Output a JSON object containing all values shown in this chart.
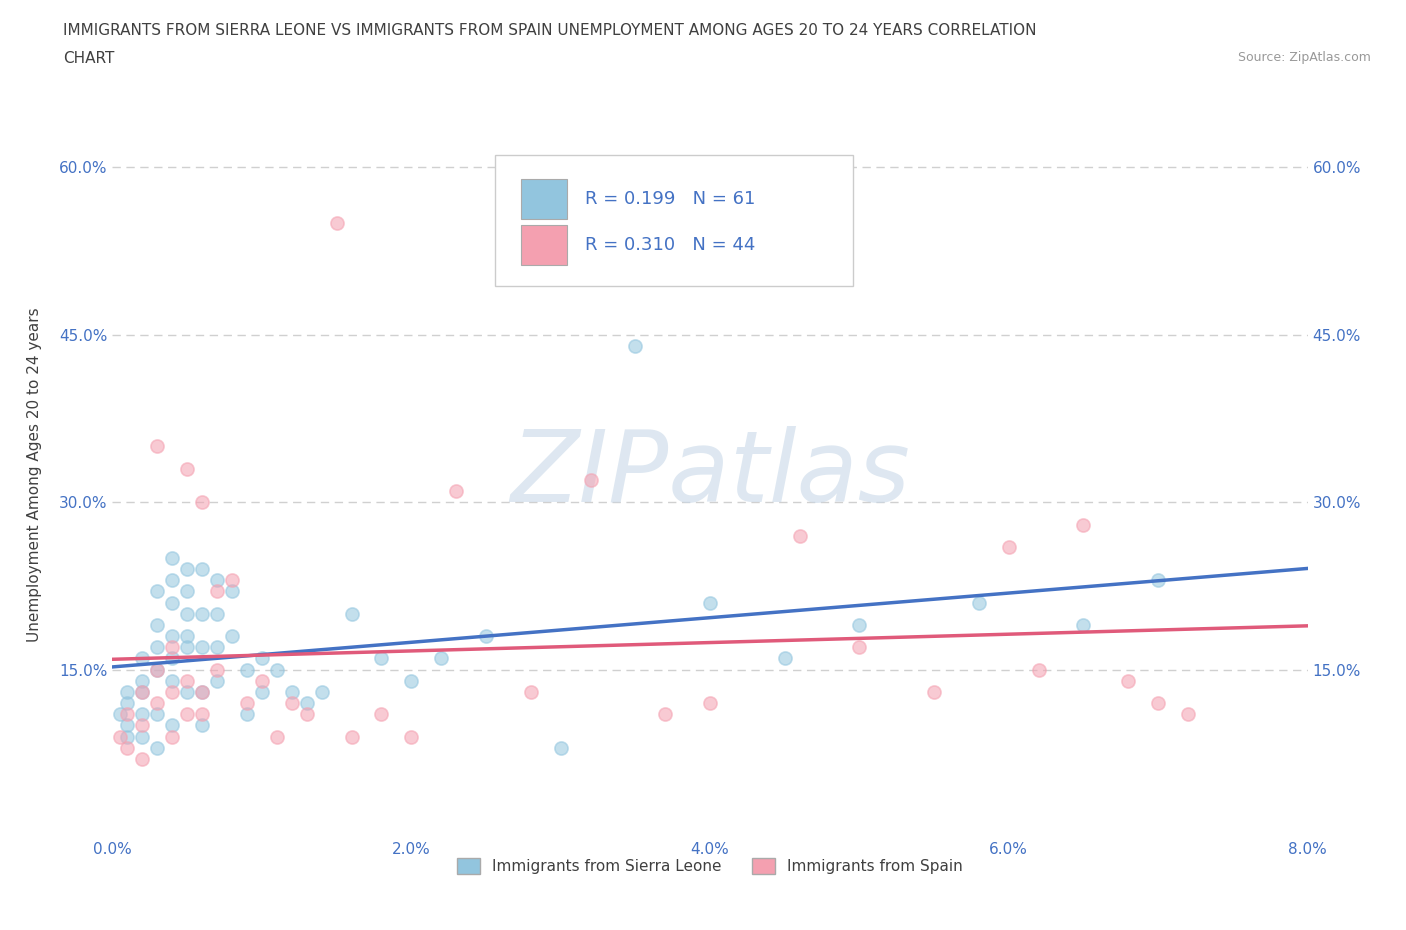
{
  "title_line1": "IMMIGRANTS FROM SIERRA LEONE VS IMMIGRANTS FROM SPAIN UNEMPLOYMENT AMONG AGES 20 TO 24 YEARS CORRELATION",
  "title_line2": "CHART",
  "source_text": "Source: ZipAtlas.com",
  "ylabel": "Unemployment Among Ages 20 to 24 years",
  "xlabel": "",
  "xlim": [
    0.0,
    0.08
  ],
  "ylim": [
    0.0,
    0.65
  ],
  "yticks": [
    0.15,
    0.3,
    0.45,
    0.6
  ],
  "ytick_labels": [
    "15.0%",
    "30.0%",
    "45.0%",
    "60.0%"
  ],
  "xticks": [
    0.0,
    0.02,
    0.04,
    0.06,
    0.08
  ],
  "xtick_labels": [
    "0.0%",
    "2.0%",
    "4.0%",
    "6.0%",
    "8.0%"
  ],
  "sierra_leone_color": "#92c5de",
  "spain_color": "#f4a0b0",
  "sierra_leone_line_color": "#4472c4",
  "spain_line_color": "#e05a7a",
  "R_sierra_leone": "0.199",
  "N_sierra_leone": "61",
  "R_spain": "0.310",
  "N_spain": "44",
  "legend_label_sierra_leone": "Immigrants from Sierra Leone",
  "legend_label_spain": "Immigrants from Spain",
  "watermark": "ZIPatlas",
  "watermark_color": "#c8d8e8",
  "background_color": "#ffffff",
  "grid_color": "#d0d0d0",
  "title_color": "#404040",
  "axis_label_color": "#404040",
  "tick_color": "#4472c4",
  "legend_R_color": "#333333",
  "legend_N_color": "#4472c4",
  "sierra_leone_x": [
    0.0005,
    0.001,
    0.001,
    0.001,
    0.001,
    0.002,
    0.002,
    0.002,
    0.002,
    0.002,
    0.003,
    0.003,
    0.003,
    0.003,
    0.003,
    0.003,
    0.004,
    0.004,
    0.004,
    0.004,
    0.004,
    0.004,
    0.004,
    0.005,
    0.005,
    0.005,
    0.005,
    0.005,
    0.005,
    0.006,
    0.006,
    0.006,
    0.006,
    0.006,
    0.007,
    0.007,
    0.007,
    0.007,
    0.008,
    0.008,
    0.009,
    0.009,
    0.01,
    0.01,
    0.011,
    0.012,
    0.013,
    0.014,
    0.016,
    0.018,
    0.02,
    0.022,
    0.025,
    0.03,
    0.035,
    0.04,
    0.045,
    0.05,
    0.058,
    0.065,
    0.07
  ],
  "sierra_leone_y": [
    0.11,
    0.13,
    0.09,
    0.12,
    0.1,
    0.16,
    0.13,
    0.11,
    0.09,
    0.14,
    0.22,
    0.19,
    0.15,
    0.11,
    0.08,
    0.17,
    0.25,
    0.21,
    0.18,
    0.14,
    0.1,
    0.23,
    0.16,
    0.24,
    0.2,
    0.17,
    0.13,
    0.22,
    0.18,
    0.24,
    0.2,
    0.17,
    0.13,
    0.1,
    0.23,
    0.2,
    0.17,
    0.14,
    0.22,
    0.18,
    0.15,
    0.11,
    0.16,
    0.13,
    0.15,
    0.13,
    0.12,
    0.13,
    0.2,
    0.16,
    0.14,
    0.16,
    0.18,
    0.08,
    0.44,
    0.21,
    0.16,
    0.19,
    0.21,
    0.19,
    0.23
  ],
  "spain_x": [
    0.0005,
    0.001,
    0.001,
    0.002,
    0.002,
    0.002,
    0.003,
    0.003,
    0.003,
    0.004,
    0.004,
    0.004,
    0.005,
    0.005,
    0.005,
    0.006,
    0.006,
    0.006,
    0.007,
    0.007,
    0.008,
    0.009,
    0.01,
    0.011,
    0.012,
    0.013,
    0.015,
    0.016,
    0.018,
    0.02,
    0.023,
    0.028,
    0.032,
    0.037,
    0.04,
    0.046,
    0.05,
    0.055,
    0.06,
    0.062,
    0.065,
    0.068,
    0.07,
    0.072
  ],
  "spain_y": [
    0.09,
    0.11,
    0.08,
    0.13,
    0.1,
    0.07,
    0.15,
    0.35,
    0.12,
    0.17,
    0.13,
    0.09,
    0.11,
    0.33,
    0.14,
    0.3,
    0.13,
    0.11,
    0.22,
    0.15,
    0.23,
    0.12,
    0.14,
    0.09,
    0.12,
    0.11,
    0.55,
    0.09,
    0.11,
    0.09,
    0.31,
    0.13,
    0.32,
    0.11,
    0.12,
    0.27,
    0.17,
    0.13,
    0.26,
    0.15,
    0.28,
    0.14,
    0.12,
    0.11
  ]
}
